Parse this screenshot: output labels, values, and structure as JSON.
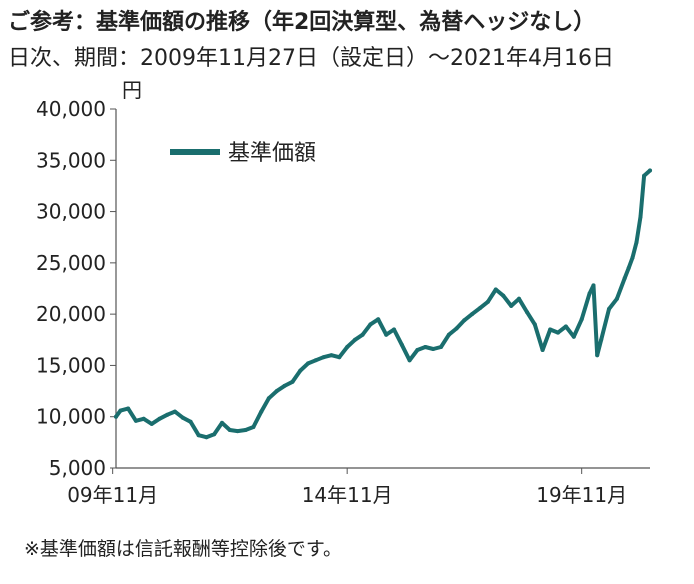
{
  "header": {
    "title": "ご参考：基準価額の推移（年2回決算型、為替ヘッジなし）",
    "subtitle": "日次、期間：2009年11月27日（設定日）～2021年4月16日"
  },
  "footnote": "※基準価額は信託報酬等控除後です。",
  "colors": {
    "series": "#1a6e6e",
    "axis": "#555555"
  },
  "chart_data": {
    "type": "line",
    "title": "",
    "xlabel": "",
    "ylabel": "円",
    "ylim": [
      5000,
      40000
    ],
    "xlim": [
      "2009-11-27",
      "2021-04-16"
    ],
    "y_ticks": [
      5000,
      10000,
      15000,
      20000,
      25000,
      30000,
      35000,
      40000
    ],
    "y_tick_labels": [
      "5,000",
      "10,000",
      "15,000",
      "20,000",
      "25,000",
      "30,000",
      "35,000",
      "40,000"
    ],
    "x_ticks": [
      "2009-11",
      "2014-11",
      "2019-11"
    ],
    "x_tick_labels": [
      "09年11月",
      "14年11月",
      "19年11月"
    ],
    "grid": false,
    "legend_position": "top-left",
    "series": [
      {
        "name": "基準価額",
        "x": [
          "2009-11-27",
          "2010-01",
          "2010-03",
          "2010-05",
          "2010-07",
          "2010-09",
          "2010-11",
          "2011-01",
          "2011-03",
          "2011-05",
          "2011-07",
          "2011-09",
          "2011-11",
          "2012-01",
          "2012-03",
          "2012-05",
          "2012-07",
          "2012-09",
          "2012-11",
          "2013-01",
          "2013-03",
          "2013-05",
          "2013-07",
          "2013-09",
          "2013-11",
          "2014-01",
          "2014-03",
          "2014-05",
          "2014-07",
          "2014-09",
          "2014-11",
          "2015-01",
          "2015-03",
          "2015-05",
          "2015-07",
          "2015-09",
          "2015-11",
          "2016-01",
          "2016-03",
          "2016-05",
          "2016-07",
          "2016-09",
          "2016-11",
          "2017-01",
          "2017-03",
          "2017-05",
          "2017-07",
          "2017-09",
          "2017-11",
          "2018-01",
          "2018-03",
          "2018-05",
          "2018-07",
          "2018-09",
          "2018-11",
          "2019-01",
          "2019-03",
          "2019-05",
          "2019-07",
          "2019-09",
          "2019-11",
          "2020-01",
          "2020-02",
          "2020-03",
          "2020-04",
          "2020-06",
          "2020-08",
          "2020-10",
          "2020-11",
          "2020-12",
          "2021-01",
          "2021-02",
          "2021-03",
          "2021-04-16"
        ],
        "values": [
          10000,
          10600,
          10800,
          9600,
          9800,
          9300,
          9800,
          10200,
          10500,
          9900,
          9500,
          8200,
          8000,
          8300,
          9400,
          8700,
          8600,
          8700,
          9000,
          10500,
          11800,
          12500,
          13000,
          13400,
          14500,
          15200,
          15500,
          15800,
          16000,
          15800,
          16800,
          17500,
          18000,
          19000,
          19500,
          18000,
          18500,
          17000,
          15500,
          16500,
          16800,
          16600,
          16800,
          18000,
          18600,
          19400,
          20000,
          20600,
          21200,
          22400,
          21800,
          20800,
          21500,
          20200,
          19000,
          16500,
          18500,
          18200,
          18800,
          17800,
          19500,
          22000,
          22800,
          16000,
          17500,
          20500,
          21500,
          23500,
          24500,
          25500,
          27000,
          29500,
          33500,
          34000
        ]
      }
    ]
  }
}
